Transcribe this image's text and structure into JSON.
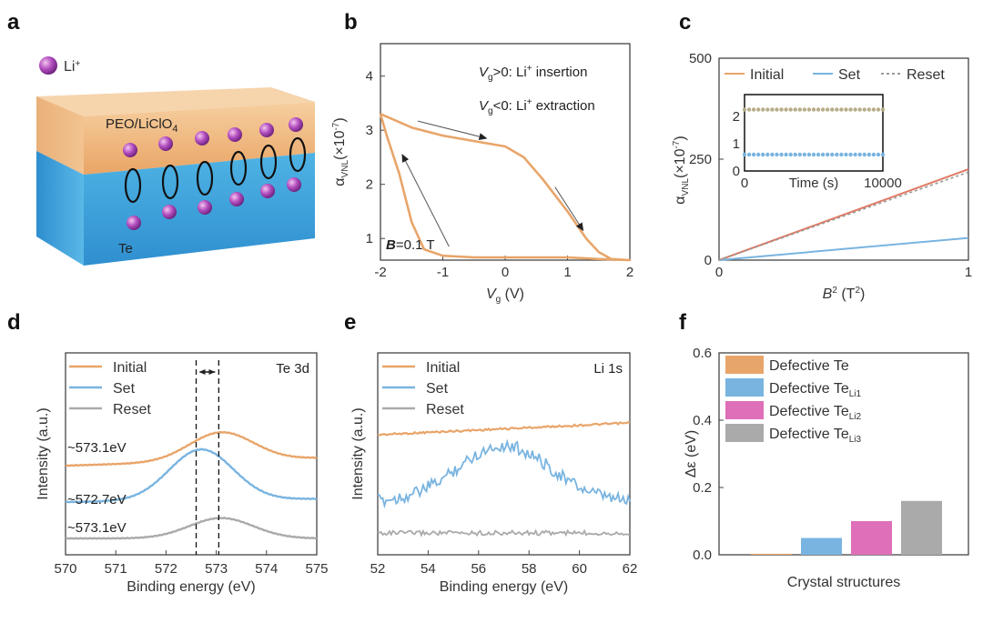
{
  "colors": {
    "orange": "#e8a56a",
    "blue": "#79b4e0",
    "gray": "#aaaaaa",
    "pink": "#de6fb8",
    "red": "#e07a63",
    "axis": "#444444"
  },
  "panel_labels": [
    "a",
    "b",
    "c",
    "d",
    "e",
    "f"
  ],
  "panel_a": {
    "ion_label": "Li",
    "ion_sup": "+",
    "layer_top": "PEO/LiClO",
    "layer_top_sub": "4",
    "layer_bottom": "Te"
  },
  "chart_data": [
    {
      "id": "b",
      "type": "line",
      "xlabel_main": "V",
      "xlabel_sub": "g",
      "xlabel_unit": " (V)",
      "ylabel_main": "α",
      "ylabel_sub": "VNL",
      "ylabel_unit": "(×10",
      "ylabel_exp": "-7",
      "ylabel_close": ")",
      "xlim": [
        -2,
        2
      ],
      "ylim": [
        0.6,
        4.6
      ],
      "xticks": [
        -2,
        -1,
        0,
        1,
        2
      ],
      "yticks": [
        1,
        2,
        3,
        4
      ],
      "xticklabels": [
        "-2",
        "-1",
        "0",
        "1",
        "2"
      ],
      "yticklabels": [
        "1",
        "2",
        "3",
        "4"
      ],
      "annotations": {
        "line1": {
          "v": "V",
          "vsub": "g",
          "cond": ">0: Li",
          "sup": "+",
          "rest": " insertion"
        },
        "line2": {
          "v": "V",
          "vsub": "g",
          "cond": "<0: Li",
          "sup": "+",
          "rest": " extraction"
        },
        "field": {
          "b": "B",
          "rest": "=0.1 T"
        }
      },
      "series": [
        {
          "name": "hysteresis",
          "x": [
            -2,
            -1.5,
            -1,
            -0.5,
            0,
            0.3,
            0.6,
            1,
            1.3,
            1.5,
            1.7,
            2,
            1.5,
            1,
            0.5,
            0,
            -0.5,
            -1,
            -1.3,
            -1.5,
            -1.7,
            -1.9,
            -2
          ],
          "y": [
            3.3,
            3.05,
            2.9,
            2.8,
            2.7,
            2.5,
            2.1,
            1.5,
            1.0,
            0.75,
            0.62,
            0.6,
            0.62,
            0.65,
            0.65,
            0.65,
            0.65,
            0.68,
            0.8,
            1.3,
            2.2,
            2.9,
            3.3
          ]
        }
      ],
      "arrows": [
        {
          "from": [
            -1.4,
            3.17
          ],
          "to": [
            -0.3,
            2.85
          ]
        },
        {
          "from": [
            0.8,
            1.95
          ],
          "to": [
            1.25,
            1.15
          ]
        },
        {
          "from": [
            -0.9,
            0.85
          ],
          "to": [
            -1.65,
            2.55
          ]
        }
      ]
    },
    {
      "id": "c",
      "type": "line",
      "xlabel_main": "B",
      "xlabel_sup": "2",
      "xlabel_unit": " (T",
      "xlabel_unit_sup": "2",
      "xlabel_close": ")",
      "ylabel_main": "α",
      "ylabel_sub": "VNL",
      "ylabel_unit": "(×10",
      "ylabel_exp": "-7",
      "ylabel_close": ")",
      "xlim": [
        0,
        1
      ],
      "ylim": [
        0,
        500
      ],
      "xticks": [
        0,
        1
      ],
      "yticks": [
        0,
        250,
        500
      ],
      "xticklabels": [
        "0",
        "1"
      ],
      "yticklabels": [
        "0",
        "250",
        "500"
      ],
      "legend": [
        "Initial",
        "Set",
        "Reset"
      ],
      "series": [
        {
          "name": "Initial",
          "x": [
            0,
            1
          ],
          "y": [
            0,
            225
          ]
        },
        {
          "name": "Set",
          "x": [
            0,
            1
          ],
          "y": [
            0,
            55
          ]
        },
        {
          "name": "Reset",
          "x": [
            0,
            1
          ],
          "y": [
            0,
            218
          ]
        }
      ],
      "inset": {
        "xlabel": "Time (s)",
        "xlim": [
          0,
          10000
        ],
        "ylim": [
          0,
          2.8
        ],
        "xticks": [
          0,
          10000
        ],
        "yticks": [
          0,
          1,
          2
        ],
        "xticklabels": [
          "0",
          "10000"
        ],
        "yticklabels": [
          "0",
          "1",
          "2"
        ],
        "series": [
          {
            "name": "high",
            "value": 2.25
          },
          {
            "name": "low",
            "value": 0.6
          }
        ]
      }
    },
    {
      "id": "d",
      "type": "line",
      "title": "Te 3d",
      "xlabel": "Binding energy (eV)",
      "ylabel": "Intensity (a.u.)",
      "xlim": [
        570,
        575
      ],
      "xticks": [
        570,
        571,
        572,
        573,
        574,
        575
      ],
      "xticklabels": [
        "570",
        "571",
        "572",
        "573",
        "574",
        "575"
      ],
      "legend": [
        "Initial",
        "Set",
        "Reset"
      ],
      "peak_labels": [
        "~573.1eV",
        "~572.7eV",
        "~573.1eV"
      ],
      "series": [
        {
          "name": "Initial",
          "baseline": 0.12,
          "peak_center": 573.1,
          "peak_height": 0.45,
          "offset": 2.0
        },
        {
          "name": "Set",
          "baseline": 0.05,
          "peak_center": 572.7,
          "peak_height": 0.8,
          "offset": 1.0
        },
        {
          "name": "Reset",
          "baseline": 0.0,
          "peak_center": 573.1,
          "peak_height": 0.32,
          "offset": 0.0
        }
      ],
      "dashed_lines": [
        572.6,
        573.05
      ]
    },
    {
      "id": "e",
      "type": "line",
      "title": "Li 1s",
      "xlabel": "Binding energy (eV)",
      "ylabel": "Intensity (a.u.)",
      "xlim": [
        52,
        62
      ],
      "xticks": [
        52,
        54,
        56,
        58,
        60,
        62
      ],
      "xticklabels": [
        "52",
        "54",
        "56",
        "58",
        "60",
        "62"
      ],
      "legend": [
        "Initial",
        "Set",
        "Reset"
      ],
      "series": [
        {
          "name": "Initial",
          "shape": "flat_rising",
          "level": 0.9
        },
        {
          "name": "Set",
          "shape": "peak",
          "center": 57,
          "height": 0.55,
          "level": 0.1
        },
        {
          "name": "Reset",
          "shape": "flat",
          "level": 0.0
        }
      ]
    },
    {
      "id": "f",
      "type": "bar",
      "xlabel": "Crystal structures",
      "ylabel": "Δε (eV)",
      "ylim": [
        0,
        0.6
      ],
      "yticks": [
        0.0,
        0.2,
        0.4,
        0.6
      ],
      "yticklabels": [
        "0.0",
        "0.2",
        "0.4",
        "0.6"
      ],
      "categories": [
        {
          "label": "Defective Te",
          "sub": ""
        },
        {
          "label": "Defective Te",
          "sub": "Li1"
        },
        {
          "label": "Defective Te",
          "sub": "Li2"
        },
        {
          "label": "Defective Te",
          "sub": "Li3"
        }
      ],
      "values": [
        0.003,
        0.05,
        0.1,
        0.16
      ]
    }
  ]
}
